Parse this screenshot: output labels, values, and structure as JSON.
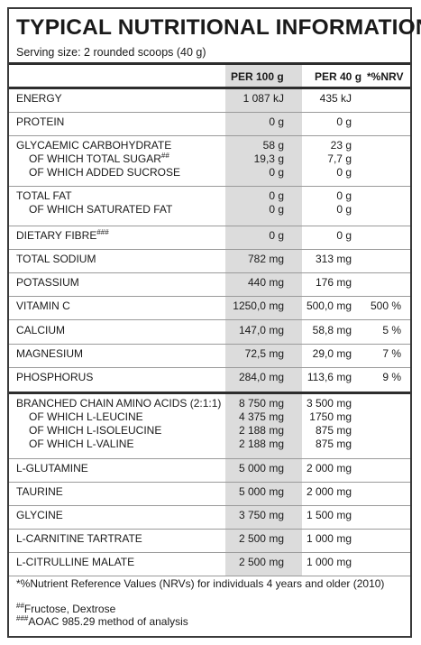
{
  "title": "TYPICAL NUTRITIONAL INFORMATION",
  "serving": "Serving size: 2 rounded scoops (40 g)",
  "columns": {
    "per100": "PER 100 g",
    "per40": "PER 40 g",
    "nrv": "*%NRV"
  },
  "rows": [
    {
      "group": 0,
      "lines": [
        {
          "label": "ENERGY",
          "v1": "1 087 kJ",
          "v2": "435 kJ",
          "v3": ""
        }
      ]
    },
    {
      "group": 1,
      "lines": [
        {
          "label": "PROTEIN",
          "v1": "0 g",
          "v2": "0 g",
          "v3": ""
        }
      ]
    },
    {
      "group": 2,
      "lines": [
        {
          "label": "GLYCAEMIC CARBOHYDRATE",
          "v1": "58 g",
          "v2": "23 g",
          "v3": ""
        },
        {
          "label": "OF WHICH TOTAL SUGAR",
          "mark": "##",
          "v1": "19,3 g",
          "v2": "7,7 g",
          "v3": "",
          "sub": true
        },
        {
          "label": "OF WHICH ADDED SUCROSE",
          "v1": "0 g",
          "v2": "0 g",
          "v3": "",
          "sub": true
        }
      ]
    },
    {
      "group": 3,
      "lines": [
        {
          "label": "TOTAL FAT",
          "v1": "0 g",
          "v2": "0 g",
          "v3": ""
        },
        {
          "label": "OF WHICH SATURATED FAT",
          "v1": "0 g",
          "v2": "0 g",
          "v3": "",
          "sub": true
        }
      ]
    },
    {
      "group": 4,
      "lines": [
        {
          "label": "DIETARY FIBRE",
          "mark": "###",
          "v1": "0 g",
          "v2": "0 g",
          "v3": ""
        }
      ]
    },
    {
      "group": 5,
      "lines": [
        {
          "label": "TOTAL SODIUM",
          "v1": "782 mg",
          "v2": "313 mg",
          "v3": ""
        }
      ]
    },
    {
      "group": 6,
      "lines": [
        {
          "label": "POTASSIUM",
          "v1": "440 mg",
          "v2": "176 mg",
          "v3": ""
        }
      ]
    },
    {
      "group": 7,
      "lines": [
        {
          "label": "VITAMIN C",
          "v1": "1250,0 mg",
          "v2": "500,0 mg",
          "v3": "500 %"
        }
      ]
    },
    {
      "group": 8,
      "lines": [
        {
          "label": "CALCIUM",
          "v1": "147,0 mg",
          "v2": "58,8 mg",
          "v3": "5 %"
        }
      ]
    },
    {
      "group": 9,
      "lines": [
        {
          "label": "MAGNESIUM",
          "v1": "72,5 mg",
          "v2": "29,0 mg",
          "v3": "7 %"
        }
      ]
    },
    {
      "group": 10,
      "lines": [
        {
          "label": "PHOSPHORUS",
          "v1": "284,0 mg",
          "v2": "113,6 mg",
          "v3": "9 %"
        }
      ]
    },
    {
      "group": 11,
      "lines": [
        {
          "label": "BRANCHED CHAIN AMINO ACIDS (2:1:1)",
          "v1": "8 750 mg",
          "v2": "3 500 mg",
          "v3": ""
        },
        {
          "label": "OF WHICH L-LEUCINE",
          "v1": "4 375 mg",
          "v2": "1750 mg",
          "v3": "",
          "sub": true
        },
        {
          "label": "OF WHICH L-ISOLEUCINE",
          "v1": "2 188 mg",
          "v2": "875 mg",
          "v3": "",
          "sub": true
        },
        {
          "label": "OF WHICH L-VALINE",
          "v1": "2 188 mg",
          "v2": "875 mg",
          "v3": "",
          "sub": true
        }
      ]
    },
    {
      "group": 12,
      "lines": [
        {
          "label": "L-GLUTAMINE",
          "v1": "5 000 mg",
          "v2": "2 000 mg",
          "v3": ""
        }
      ]
    },
    {
      "group": 13,
      "lines": [
        {
          "label": "TAURINE",
          "v1": "5 000 mg",
          "v2": "2 000 mg",
          "v3": ""
        }
      ]
    },
    {
      "group": 14,
      "lines": [
        {
          "label": "GLYCINE",
          "v1": "3 750 mg",
          "v2": "1 500 mg",
          "v3": ""
        }
      ]
    },
    {
      "group": 15,
      "lines": [
        {
          "label": "L-CARNITINE TARTRATE",
          "v1": "2 500 mg",
          "v2": "1 000 mg",
          "v3": ""
        }
      ]
    },
    {
      "group": 16,
      "lines": [
        {
          "label": "L-CITRULLINE MALATE",
          "v1": "2 500 mg",
          "v2": "1 000 mg",
          "v3": ""
        }
      ]
    }
  ],
  "footnotes": {
    "nrv": "*%Nutrient Reference Values (NRVs) for individuals 4 years and older (2010)",
    "sugar_mark": "##",
    "sugar": "Fructose, Dextrose",
    "fibre_mark": "###",
    "fibre": "AOAC 985.29 method of analysis"
  }
}
